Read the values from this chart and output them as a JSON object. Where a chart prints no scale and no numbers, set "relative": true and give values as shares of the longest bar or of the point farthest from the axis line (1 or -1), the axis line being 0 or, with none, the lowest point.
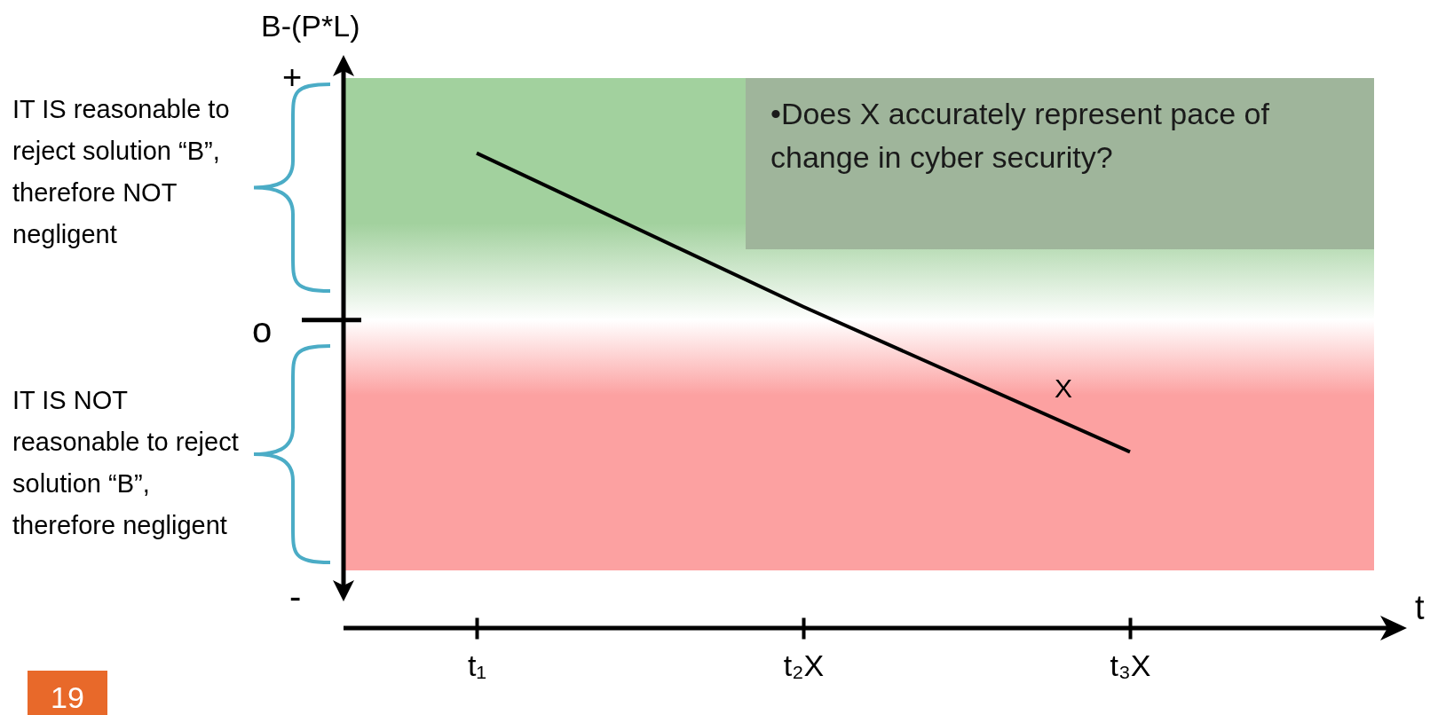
{
  "chart_data": {
    "type": "line",
    "relative": true,
    "categories": [
      "t₁",
      "t₂X",
      "t₃X"
    ],
    "series": [
      {
        "name": "X",
        "color": "#000000",
        "values": [
          1,
          0.08,
          -0.79
        ]
      }
    ],
    "bands": [
      {
        "axis": "y",
        "from": 0,
        "to": 1.45,
        "color": "#a2d19e"
      },
      {
        "axis": "y",
        "from": -1.5,
        "to": 0,
        "color": "#fca1a1"
      }
    ],
    "annotations": [
      "IT IS reasonable to reject solution “B”, therefore NOT negligent",
      "IT IS NOT reasonable to reject solution “B”, therefore negligent",
      "•Does X accurately represent pace of change in cyber security?",
      "+",
      "o",
      "-",
      "19",
      "B-(P*L)",
      "t"
    ]
  }
}
